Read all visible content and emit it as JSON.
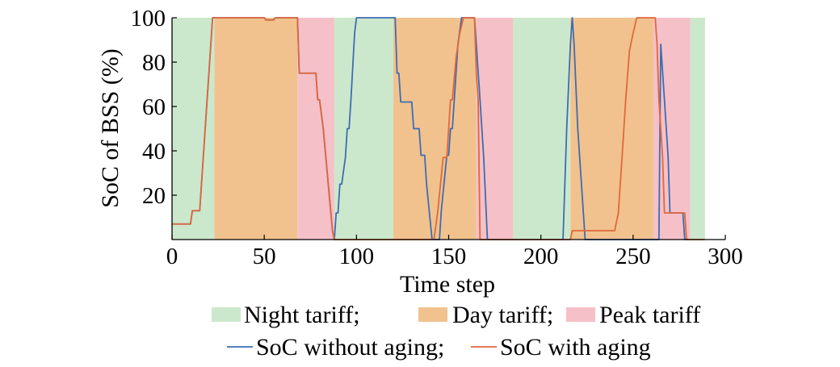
{
  "chart_data": {
    "type": "line",
    "xlabel": "Time step",
    "ylabel": "SoC of BSS (%)",
    "xlim": [
      0,
      300
    ],
    "ylim": [
      0,
      100
    ],
    "xticks": [
      0,
      50,
      100,
      150,
      200,
      250,
      300
    ],
    "yticks": [
      20,
      40,
      60,
      80,
      100
    ],
    "grid": false,
    "legend_position": "bottom",
    "tariff_periods": [
      {
        "tariff": "night",
        "start": 0,
        "end": 23
      },
      {
        "tariff": "day",
        "start": 23,
        "end": 68
      },
      {
        "tariff": "peak",
        "start": 68,
        "end": 88
      },
      {
        "tariff": "night",
        "start": 88,
        "end": 120
      },
      {
        "tariff": "day",
        "start": 120,
        "end": 165
      },
      {
        "tariff": "peak",
        "start": 165,
        "end": 185
      },
      {
        "tariff": "night",
        "start": 185,
        "end": 216
      },
      {
        "tariff": "day",
        "start": 216,
        "end": 261
      },
      {
        "tariff": "peak",
        "start": 261,
        "end": 281
      },
      {
        "tariff": "night",
        "start": 281,
        "end": 289
      }
    ],
    "tariff_colors": {
      "night": "#cce8cc",
      "day": "#f1c28e",
      "peak": "#f6c0c8"
    },
    "series": [
      {
        "key": "without_aging",
        "color": "#3c6db2",
        "points": [
          [
            0,
            7
          ],
          [
            10,
            7
          ],
          [
            11,
            13
          ],
          [
            15,
            13
          ],
          [
            22,
            100
          ],
          [
            50,
            100
          ],
          [
            51,
            99
          ],
          [
            55,
            99
          ],
          [
            56,
            100
          ],
          [
            68,
            100
          ],
          [
            69,
            75
          ],
          [
            78,
            75
          ],
          [
            79,
            63
          ],
          [
            80,
            63
          ],
          [
            82,
            50
          ],
          [
            86,
            13
          ],
          [
            87,
            4
          ],
          [
            88,
            0
          ],
          [
            89,
            12
          ],
          [
            90,
            12
          ],
          [
            91,
            25
          ],
          [
            92,
            25
          ],
          [
            94,
            37
          ],
          [
            95,
            50
          ],
          [
            96,
            50
          ],
          [
            97,
            63
          ],
          [
            99,
            93
          ],
          [
            100,
            100
          ],
          [
            121,
            100
          ],
          [
            122,
            75
          ],
          [
            123,
            75
          ],
          [
            124,
            62
          ],
          [
            130,
            62
          ],
          [
            131,
            50
          ],
          [
            134,
            50
          ],
          [
            135,
            38
          ],
          [
            137,
            38
          ],
          [
            138,
            25
          ],
          [
            141,
            0
          ],
          [
            145,
            0
          ],
          [
            146,
            13
          ],
          [
            149,
            38
          ],
          [
            150,
            38
          ],
          [
            151,
            50
          ],
          [
            152,
            50
          ],
          [
            154,
            75
          ],
          [
            155,
            88
          ],
          [
            157,
            100
          ],
          [
            164,
            100
          ],
          [
            165,
            88
          ],
          [
            167,
            63
          ],
          [
            169,
            37
          ],
          [
            171,
            0
          ],
          [
            212,
            0
          ],
          [
            214,
            50
          ],
          [
            216,
            88
          ],
          [
            217,
            100
          ],
          [
            218,
            88
          ],
          [
            220,
            50
          ],
          [
            222,
            25
          ],
          [
            224,
            0
          ],
          [
            264,
            0
          ],
          [
            265,
            88
          ],
          [
            267,
            63
          ],
          [
            269,
            37
          ],
          [
            270,
            12
          ],
          [
            277,
            12
          ],
          [
            278,
            0
          ],
          [
            280,
            0
          ]
        ]
      },
      {
        "key": "with_aging",
        "color": "#e0683d",
        "points": [
          [
            0,
            7
          ],
          [
            10,
            7
          ],
          [
            11,
            13
          ],
          [
            15,
            13
          ],
          [
            22,
            100
          ],
          [
            50,
            100
          ],
          [
            51,
            99
          ],
          [
            55,
            99
          ],
          [
            56,
            100
          ],
          [
            68,
            100
          ],
          [
            69,
            75
          ],
          [
            78,
            75
          ],
          [
            79,
            63
          ],
          [
            80,
            63
          ],
          [
            82,
            50
          ],
          [
            86,
            13
          ],
          [
            87,
            4
          ],
          [
            88,
            0
          ],
          [
            142,
            0
          ],
          [
            144,
            12
          ],
          [
            147,
            37
          ],
          [
            149,
            37
          ],
          [
            151,
            63
          ],
          [
            152,
            63
          ],
          [
            154,
            82
          ],
          [
            156,
            93
          ],
          [
            158,
            100
          ],
          [
            164,
            100
          ],
          [
            165,
            75
          ],
          [
            166,
            63
          ],
          [
            167,
            0
          ],
          [
            216,
            0
          ],
          [
            217,
            4
          ],
          [
            240,
            4
          ],
          [
            242,
            12
          ],
          [
            244,
            37
          ],
          [
            246,
            63
          ],
          [
            248,
            85
          ],
          [
            250,
            93
          ],
          [
            252,
            100
          ],
          [
            262,
            100
          ],
          [
            263,
            88
          ],
          [
            264,
            63
          ],
          [
            266,
            37
          ],
          [
            267,
            12
          ],
          [
            278,
            12
          ],
          [
            279,
            0
          ],
          [
            289,
            0
          ]
        ]
      }
    ],
    "legend": {
      "row1": [
        {
          "label": "Night tariff;",
          "color": "#cce8cc"
        },
        {
          "label": "Day tariff;",
          "color": "#f1c28e"
        },
        {
          "label": "Peak tariff",
          "color": "#f6c0c8"
        }
      ],
      "row2": [
        {
          "label": "SoC without aging;",
          "color": "#3c6db2"
        },
        {
          "label": "SoC with aging",
          "color": "#e0683d"
        }
      ]
    }
  }
}
